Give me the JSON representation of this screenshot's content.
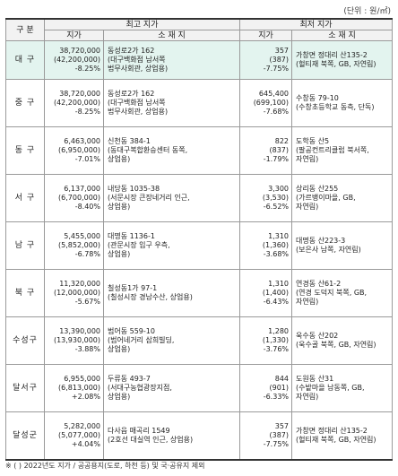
{
  "unit": "(단위 : 원/㎡)",
  "headers": {
    "gubun": "구 분",
    "highest": "최고 지가",
    "lowest": "최저 지가",
    "price": "지가",
    "location": "소 재 지"
  },
  "rows": [
    {
      "region": "대 구",
      "hi_price": "38,720,000",
      "hi_prev": "(42,200,000)",
      "hi_rate": "-8.25%",
      "hi_loc1": "동성로2가 162",
      "hi_loc2": "(대구백화점 남서쪽",
      "hi_loc3": "법무사회관, 상업용)",
      "lo_price": "357",
      "lo_prev": "(387)",
      "lo_rate": "-7.75%",
      "lo_loc1": "가창면 정대리 산135-2",
      "lo_loc2": "(헐티재 북쪽, GB, 자연림)",
      "lo_loc3": ""
    },
    {
      "region": "중 구",
      "hi_price": "38,720,000",
      "hi_prev": "(42,200,000)",
      "hi_rate": "-8.25%",
      "hi_loc1": "동성로2가 162",
      "hi_loc2": "(대구백화점 남서쪽",
      "hi_loc3": "법무사회관, 상업용)",
      "lo_price": "645,400",
      "lo_prev": "(699,100)",
      "lo_rate": "-7.68%",
      "lo_loc1": "수창동 79-10",
      "lo_loc2": "(수창초등학교 동측, 단독)",
      "lo_loc3": ""
    },
    {
      "region": "동 구",
      "hi_price": "6,463,000",
      "hi_prev": "(6,950,000)",
      "hi_rate": "-7.01%",
      "hi_loc1": "신천동 384-1",
      "hi_loc2": "(동대구복합환승센터 동쪽,",
      "hi_loc3": "상업용)",
      "lo_price": "822",
      "lo_prev": "(837)",
      "lo_rate": "-1.79%",
      "lo_loc1": "도학동 산5",
      "lo_loc2": "(팔공컨트리클럽 북서쪽,",
      "lo_loc3": "자연림)"
    },
    {
      "region": "서 구",
      "hi_price": "6,137,000",
      "hi_prev": "(6,700,000)",
      "hi_rate": "-8.40%",
      "hi_loc1": "내당동 1035-38",
      "hi_loc2": "(서문시장 큰장네거리 인근,",
      "hi_loc3": "상업용)",
      "lo_price": "3,300",
      "lo_prev": "(3,530)",
      "lo_rate": "-6.52%",
      "lo_loc1": "상리동 산255",
      "lo_loc2": "(가르뱅이마을, GB,",
      "lo_loc3": "자연림)"
    },
    {
      "region": "남 구",
      "hi_price": "5,455,000",
      "hi_prev": "(5,852,000)",
      "hi_rate": "-6.78%",
      "hi_loc1": "대명동 1136-1",
      "hi_loc2": "(관문시장 입구 우측,",
      "hi_loc3": "상업용)",
      "lo_price": "1,310",
      "lo_prev": "(1,360)",
      "lo_rate": "-3.68%",
      "lo_loc1": "대명동 산223-3",
      "lo_loc2": "(보은사 남쪽, 자연림)",
      "lo_loc3": ""
    },
    {
      "region": "북 구",
      "hi_price": "11,320,000",
      "hi_prev": "(12,000,000)",
      "hi_rate": "-5.67%",
      "hi_loc1": "칠성동1가 97-1",
      "hi_loc2": "(칠성시장 경남수산, 상업용)",
      "hi_loc3": "",
      "lo_price": "1,310",
      "lo_prev": "(1,400)",
      "lo_rate": "-6.43%",
      "lo_loc1": "연경동 산61-2",
      "lo_loc2": "(연경 도덕지 북쪽, GB,",
      "lo_loc3": "자연림)"
    },
    {
      "region": "수성구",
      "hi_price": "13,390,000",
      "hi_prev": "(13,930,000)",
      "hi_rate": "-3.88%",
      "hi_loc1": "범어동 559-10",
      "hi_loc2": "(범어네거리 삼희빌딩,",
      "hi_loc3": "상업용)",
      "lo_price": "1,280",
      "lo_prev": "(1,330)",
      "lo_rate": "-3.76%",
      "lo_loc1": "욱수동 산202",
      "lo_loc2": "(욱수골 북쪽, GB, 자연림)",
      "lo_loc3": ""
    },
    {
      "region": "달서구",
      "hi_price": "6,955,000",
      "hi_prev": "(6,813,000)",
      "hi_rate": "+2.08%",
      "hi_loc1": "두류동 493-7",
      "hi_loc2": "(서대구농협광장지점,",
      "hi_loc3": "상업용)",
      "lo_price": "844",
      "lo_prev": "(901)",
      "lo_rate": "-6.33%",
      "lo_loc1": "도원동 산31",
      "lo_loc2": "(수밭마을 남동쪽, GB,",
      "lo_loc3": "자연림)"
    },
    {
      "region": "달성군",
      "hi_price": "5,282,000",
      "hi_prev": "(5,077,000)",
      "hi_rate": "+4.04%",
      "hi_loc1": "다사읍 매곡리 1549",
      "hi_loc2": "(2호선 대실역 인근, 상업용)",
      "hi_loc3": "",
      "lo_price": "357",
      "lo_prev": "(387)",
      "lo_rate": "-7.75%",
      "lo_loc1": "가창면 정대리 산135-2",
      "lo_loc2": "(헐티재 북쪽, GB, 자연림)",
      "lo_loc3": ""
    }
  ],
  "footnote": "※ (   ) 2022년도 지가 / 공공용지(도로, 하천 등) 및 국·공유지 제외",
  "colors": {
    "highlight_row": "#e3f4ef",
    "header_bg": "#f2f2f2",
    "border": "#9a9a9a"
  }
}
